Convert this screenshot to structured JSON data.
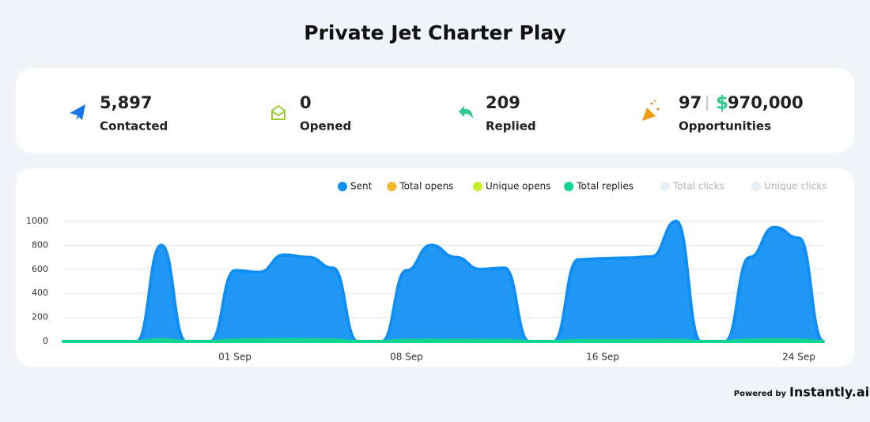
{
  "header": {
    "title": "Private Jet Charter Play"
  },
  "stats": [
    {
      "value": "5,897",
      "label": "Contacted"
    },
    {
      "value": "0",
      "label": "Opened"
    },
    {
      "value": "209",
      "label": "Replied"
    },
    {
      "value": "97",
      "currency": "$",
      "amount": "970,000",
      "label": "Opportunities"
    }
  ],
  "chart_data": {
    "type": "area",
    "categories": [
      null,
      null,
      null,
      null,
      null,
      null,
      null,
      "01 Sep",
      null,
      null,
      null,
      null,
      null,
      null,
      "08 Sep",
      null,
      null,
      null,
      null,
      null,
      null,
      null,
      "16 Sep",
      null,
      null,
      null,
      null,
      null,
      null,
      null,
      "24 Sep",
      null
    ],
    "series": [
      {
        "name": "Sent",
        "color": "#0f8ff5",
        "values": [
          0,
          0,
          0,
          0,
          800,
          0,
          0,
          590,
          575,
          720,
          700,
          610,
          0,
          0,
          590,
          800,
          700,
          600,
          610,
          0,
          0,
          680,
          690,
          695,
          705,
          1000,
          0,
          0,
          700,
          950,
          860,
          0
        ]
      },
      {
        "name": "Total opens",
        "color": "#f5b731",
        "values": [
          0,
          0,
          0,
          0,
          0,
          0,
          0,
          0,
          0,
          0,
          0,
          0,
          0,
          0,
          0,
          0,
          0,
          0,
          0,
          0,
          0,
          0,
          0,
          0,
          0,
          0,
          0,
          0,
          0,
          0,
          0,
          0
        ]
      },
      {
        "name": "Unique opens",
        "color": "#c3ee2a",
        "values": [
          0,
          0,
          0,
          0,
          0,
          0,
          0,
          0,
          0,
          0,
          0,
          0,
          0,
          0,
          0,
          0,
          0,
          0,
          0,
          0,
          0,
          0,
          0,
          0,
          0,
          0,
          0,
          0,
          0,
          0,
          0,
          0
        ]
      },
      {
        "name": "Total replies",
        "color": "#12d48f",
        "values": [
          0,
          0,
          0,
          0,
          15,
          0,
          0,
          12,
          14,
          16,
          15,
          12,
          0,
          0,
          10,
          12,
          10,
          9,
          9,
          0,
          0,
          8,
          8,
          8,
          9,
          10,
          0,
          0,
          12,
          14,
          12,
          0
        ]
      },
      {
        "name": "Total clicks",
        "color": "#e6eef7",
        "hidden": true
      },
      {
        "name": "Unique clicks",
        "color": "#e6eef7",
        "hidden": true
      }
    ],
    "ylim": [
      0,
      1000
    ],
    "yticks": [
      0,
      200,
      400,
      600,
      800,
      1000
    ],
    "grid": true
  },
  "footer": {
    "prefix": "Powered by",
    "brand": "Instantly.ai"
  }
}
